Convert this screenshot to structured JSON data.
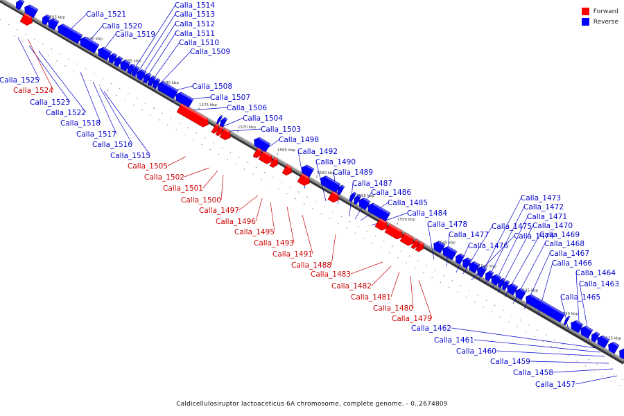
{
  "caption": "Caldicellulosiruptor lactoaceticus 6A chromosome, complete genome. - 0..2674809",
  "legend": {
    "forward_label": "Forward",
    "reverse_label": "Reverse",
    "forward_color": "#ff0000",
    "reverse_color": "#0000ff"
  },
  "colors": {
    "backbone": "#8a8a8a",
    "label_forward": "#cc0000",
    "label_reverse": "#0000cc"
  },
  "ticks": [
    "1595 kbp",
    "1590 kbp",
    "1585 kbp",
    "1580 kbp",
    "1575 kbp",
    "1570 kbp",
    "1565 kbp",
    "1560 kbp",
    "1555 kbp",
    "1550 kbp",
    "1545 kbp",
    "1540 kbp",
    "1535 kbp",
    "1530 kbp",
    "1525 kbp"
  ],
  "genes_reverse_upper": [
    "Calla_1521",
    "Calla_1520",
    "Calla_1519",
    "Calla_1514",
    "Calla_1513",
    "Calla_1512",
    "Calla_1511",
    "Calla_1510",
    "Calla_1509",
    "Calla_1508",
    "Calla_1507",
    "Calla_1506",
    "Calla_1504",
    "Calla_1503",
    "Calla_1498",
    "Calla_1492",
    "Calla_1490",
    "Calla_1489",
    "Calla_1487",
    "Calla_1486",
    "Calla_1485",
    "Calla_1484",
    "Calla_1478",
    "Calla_1477",
    "Calla_1476",
    "Calla_1475",
    "Calla_1474",
    "Calla_1473",
    "Calla_1472",
    "Calla_1471",
    "Calla_1470",
    "Calla_1469",
    "Calla_1468",
    "Calla_1467",
    "Calla_1466",
    "Calla_1465",
    "Calla_1464",
    "Calla_1463"
  ],
  "genes_reverse_lower": [
    "Calla_1525",
    "Calla_1523",
    "Calla_1522",
    "Calla_1518",
    "Calla_1517",
    "Calla_1516",
    "Calla_1515",
    "Calla_1462",
    "Calla_1461",
    "Calla_1460",
    "Calla_1459",
    "Calla_1458",
    "Calla_1457"
  ],
  "genes_forward": [
    "Calla_1524",
    "Calla_1505",
    "Calla_1502",
    "Calla_1501",
    "Calla_1500",
    "Calla_1497",
    "Calla_1496",
    "Calla_1495",
    "Calla_1493",
    "Calla_1491",
    "Calla_1488",
    "Calla_1483",
    "Calla_1482",
    "Calla_1481",
    "Calla_1480",
    "Calla_1479"
  ]
}
